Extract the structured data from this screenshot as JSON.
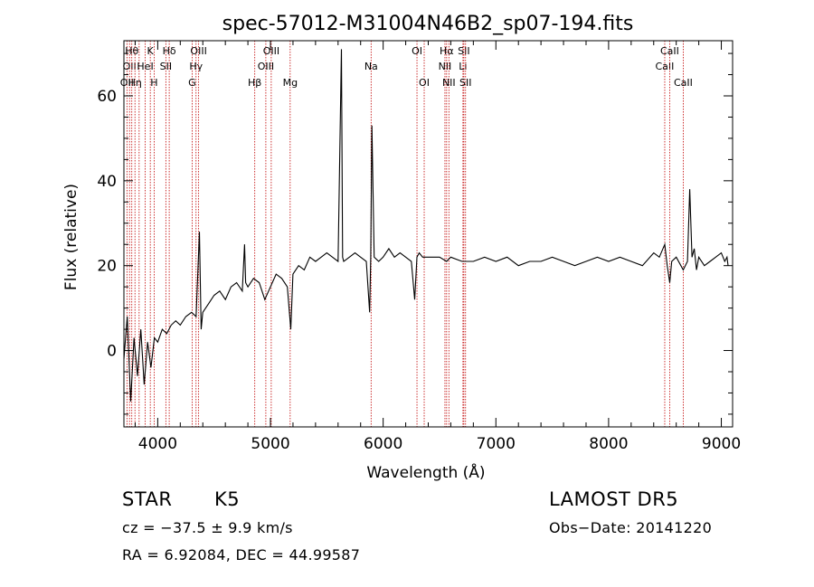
{
  "chart_data": {
    "type": "line",
    "title": "spec-57012-M31004N46B2_sp07-194.fits",
    "xlabel": "Wavelength (Å)",
    "ylabel": "Flux (relative)",
    "xlim": [
      3700,
      9100
    ],
    "ylim": [
      -18,
      73
    ],
    "x_ticks": [
      4000,
      5000,
      6000,
      7000,
      8000,
      9000
    ],
    "y_ticks": [
      0,
      20,
      40,
      60
    ],
    "grid": false,
    "line_color": "#000000",
    "marker_color": "#c00000",
    "series": [
      {
        "x": [
          3700,
          3730,
          3760,
          3790,
          3820,
          3850,
          3880,
          3910,
          3940,
          3970,
          4000,
          4040,
          4080,
          4120,
          4160,
          4200,
          4250,
          4300,
          4340,
          4370,
          4385,
          4400,
          4450,
          4500,
          4550,
          4600,
          4650,
          4700,
          4750,
          4770,
          4780,
          4800,
          4850,
          4900,
          4950,
          5000,
          5050,
          5100,
          5150,
          5180,
          5200,
          5250,
          5300,
          5350,
          5400,
          5450,
          5500,
          5550,
          5600,
          5630,
          5640,
          5650,
          5700,
          5750,
          5800,
          5850,
          5880,
          5890,
          5900,
          5920,
          5960,
          6000,
          6050,
          6100,
          6150,
          6200,
          6250,
          6280,
          6300,
          6320,
          6350,
          6400,
          6500,
          6563,
          6600,
          6700,
          6800,
          6900,
          7000,
          7100,
          7200,
          7300,
          7400,
          7500,
          7600,
          7700,
          7800,
          7900,
          8000,
          8100,
          8200,
          8300,
          8400,
          8450,
          8498,
          8520,
          8542,
          8560,
          8600,
          8662,
          8700,
          8720,
          8740,
          8760,
          8780,
          8800,
          8850,
          8900,
          8950,
          9000,
          9030,
          9050,
          9060
        ],
        "y": [
          -2,
          8,
          -12,
          3,
          -6,
          5,
          -8,
          2,
          -4,
          3,
          2,
          5,
          4,
          6,
          7,
          6,
          8,
          9,
          8,
          28,
          5,
          9,
          11,
          13,
          14,
          12,
          15,
          16,
          14,
          25,
          16,
          15,
          17,
          16,
          12,
          15,
          18,
          17,
          15,
          5,
          18,
          20,
          19,
          22,
          21,
          22,
          23,
          22,
          21,
          71,
          22,
          21,
          22,
          23,
          22,
          21,
          9,
          22,
          53,
          22,
          21,
          22,
          24,
          22,
          23,
          22,
          21,
          12,
          22,
          23,
          22,
          22,
          22,
          21,
          22,
          21,
          21,
          22,
          21,
          22,
          20,
          21,
          21,
          22,
          21,
          20,
          21,
          22,
          21,
          22,
          21,
          20,
          23,
          22,
          25,
          20,
          16,
          21,
          22,
          19,
          21,
          38,
          22,
          24,
          19,
          22,
          20,
          21,
          22,
          23,
          21,
          22,
          20
        ]
      }
    ],
    "line_markers": [
      {
        "x": 3727,
        "label": "OII",
        "row": 3
      },
      {
        "x": 3750,
        "label": "OII",
        "row": 2
      },
      {
        "x": 3770,
        "label": "Hθ",
        "row": 1
      },
      {
        "x": 3798,
        "label": "Hη",
        "row": 3
      },
      {
        "x": 3835,
        "label": "",
        "row": 0
      },
      {
        "x": 3889,
        "label": "HeI",
        "row": 2
      },
      {
        "x": 3934,
        "label": "K",
        "row": 1
      },
      {
        "x": 3968,
        "label": "H",
        "row": 3
      },
      {
        "x": 4072,
        "label": "SII",
        "row": 2
      },
      {
        "x": 4102,
        "label": "Hδ",
        "row": 1
      },
      {
        "x": 4305,
        "label": "G",
        "row": 3
      },
      {
        "x": 4340,
        "label": "Hγ",
        "row": 2
      },
      {
        "x": 4363,
        "label": "OIII",
        "row": 1
      },
      {
        "x": 4861,
        "label": "Hβ",
        "row": 3
      },
      {
        "x": 4959,
        "label": "OIII",
        "row": 2
      },
      {
        "x": 5007,
        "label": "OIII",
        "row": 1
      },
      {
        "x": 5175,
        "label": "Mg",
        "row": 3
      },
      {
        "x": 5893,
        "label": "Na",
        "row": 2
      },
      {
        "x": 6300,
        "label": "OI",
        "row": 1
      },
      {
        "x": 6364,
        "label": "OI",
        "row": 3
      },
      {
        "x": 6548,
        "label": "NII",
        "row": 2
      },
      {
        "x": 6563,
        "label": "Hα",
        "row": 1
      },
      {
        "x": 6583,
        "label": "NII",
        "row": 3
      },
      {
        "x": 6708,
        "label": "Li",
        "row": 2
      },
      {
        "x": 6716,
        "label": "SII",
        "row": 1
      },
      {
        "x": 6731,
        "label": "SII",
        "row": 3
      },
      {
        "x": 8498,
        "label": "CaII",
        "row": 2
      },
      {
        "x": 8542,
        "label": "CaII",
        "row": 1
      },
      {
        "x": 8662,
        "label": "CaII",
        "row": 3
      }
    ]
  },
  "info": {
    "class": "STAR",
    "subclass": "K5",
    "survey": "LAMOST DR5",
    "cz": "cz = −37.5 ± 9.9 km/s",
    "obs_date": "Obs−Date: 20141220",
    "coords": "RA =    6.92084, DEC =  44.99587"
  }
}
